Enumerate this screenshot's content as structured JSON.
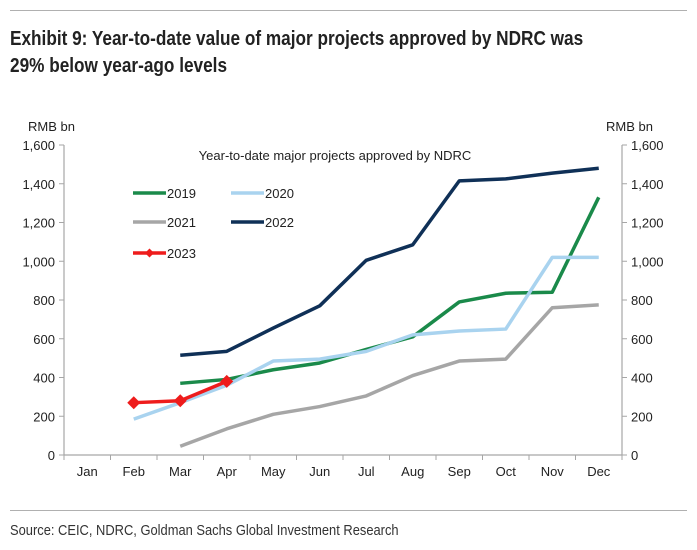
{
  "header": {
    "title_line1": "Exhibit 9: Year-to-date value of major projects approved by NDRC was",
    "title_line2": "29% below year-ago levels"
  },
  "footer": {
    "source": "Source: CEIC, NDRC, Goldman Sachs Global Investment Research"
  },
  "chart_data": {
    "type": "line",
    "title": "Year-to-date major projects approved by NDRC",
    "xlabel": "",
    "ylabel_left": "RMB bn",
    "ylabel_right": "RMB bn",
    "ylim": [
      0,
      1600
    ],
    "yticks": [
      0,
      200,
      400,
      600,
      800,
      1000,
      1200,
      1400,
      1600
    ],
    "ytick_labels": [
      "0",
      "200",
      "400",
      "600",
      "800",
      "1,000",
      "1,200",
      "1,400",
      "1,600"
    ],
    "categories": [
      "Jan",
      "Feb",
      "Mar",
      "Apr",
      "May",
      "Jun",
      "Jul",
      "Aug",
      "Sep",
      "Oct",
      "Nov",
      "Dec"
    ],
    "grid": false,
    "legend_position": "top-left",
    "series": [
      {
        "name": "2019",
        "color": "#1a8a4a",
        "marker": "none",
        "values": [
          null,
          null,
          370,
          390,
          440,
          475,
          545,
          610,
          790,
          835,
          840,
          1330
        ]
      },
      {
        "name": "2020",
        "color": "#a9d3ef",
        "marker": "none",
        "values": [
          null,
          185,
          270,
          360,
          485,
          495,
          535,
          620,
          640,
          650,
          1020,
          1020
        ]
      },
      {
        "name": "2021",
        "color": "#a6a6a6",
        "marker": "none",
        "values": [
          null,
          null,
          45,
          135,
          210,
          250,
          305,
          410,
          485,
          495,
          760,
          775
        ]
      },
      {
        "name": "2022",
        "color": "#0f3057",
        "marker": "none",
        "values": [
          null,
          null,
          515,
          535,
          655,
          770,
          1005,
          1085,
          1415,
          1425,
          1455,
          1480
        ]
      },
      {
        "name": "2023",
        "color": "#ee1c1c",
        "marker": "diamond",
        "values": [
          null,
          270,
          280,
          380,
          null,
          null,
          null,
          null,
          null,
          null,
          null,
          null
        ]
      }
    ]
  }
}
